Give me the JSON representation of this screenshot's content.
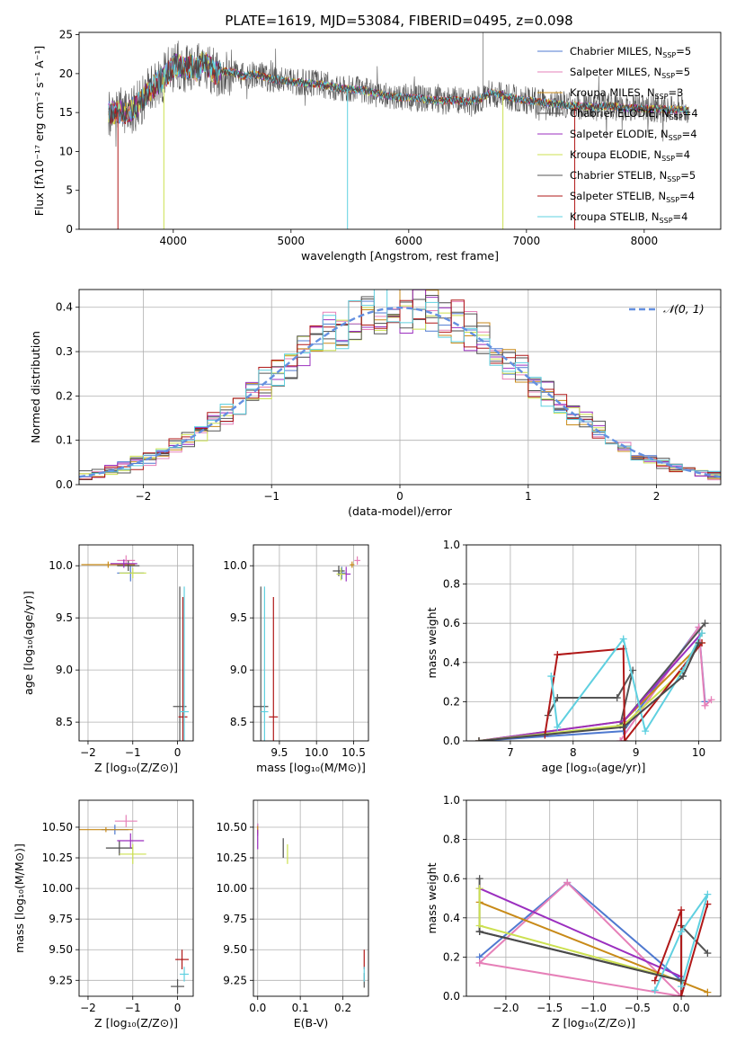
{
  "title": "PLATE=1619, MJD=53084, FIBERID=0495, z=0.098",
  "colors": [
    "#4f79d0",
    "#e680b8",
    "#c88a18",
    "#4a4a4a",
    "#9b2fbf",
    "#cce050",
    "#555555",
    "#b01818",
    "#5fd0e0"
  ],
  "chart_data": [
    {
      "id": "spectrum",
      "type": "line",
      "title": "PLATE=1619, MJD=53084, FIBERID=0495, z=0.098",
      "xlabel": "wavelength [Angstrom, rest frame]",
      "ylabel": "Flux [fλ10⁻¹⁷ erg cm⁻² s⁻¹ A⁻¹]",
      "xlim": [
        3200,
        8650
      ],
      "ylim": [
        0,
        25.3
      ],
      "xticks": [
        4000,
        5000,
        6000,
        7000,
        8000
      ],
      "yticks": [
        0,
        5,
        10,
        15,
        20,
        25
      ],
      "legend_position": "top-right",
      "data": {
        "x": [
          3450,
          3500,
          3550,
          3600,
          3650,
          3700,
          3750,
          3800,
          3850,
          3900,
          3950,
          4000,
          4050,
          4100,
          4150,
          4200,
          4250,
          4300,
          4350,
          4400,
          4500,
          4600,
          4700,
          4800,
          4900,
          5000,
          5100,
          5200,
          5300,
          5400,
          5500,
          5600,
          5700,
          5800,
          5900,
          6000,
          6100,
          6200,
          6300,
          6400,
          6500,
          6600,
          6700,
          6800,
          6900,
          7000,
          7100,
          7200,
          7300,
          7400,
          7500,
          7600,
          7700,
          7800,
          7900,
          8000,
          8100,
          8200,
          8300,
          8380
        ],
        "y": [
          15.1,
          14.7,
          15.2,
          15.0,
          15.4,
          16.0,
          17.0,
          17.8,
          18.6,
          19.2,
          20.0,
          20.8,
          21.2,
          20.6,
          21.0,
          20.5,
          21.4,
          21.0,
          20.0,
          20.3,
          20.2,
          19.6,
          20.0,
          19.4,
          19.2,
          18.9,
          18.8,
          18.7,
          18.5,
          18.2,
          18.0,
          17.9,
          17.5,
          17.2,
          17.0,
          16.9,
          16.8,
          16.6,
          16.5,
          16.6,
          16.4,
          16.7,
          17.6,
          17.2,
          16.8,
          16.6,
          16.4,
          16.2,
          16.0,
          15.9,
          15.8,
          15.7,
          15.9,
          15.6,
          15.6,
          15.5,
          15.5,
          15.4,
          15.4,
          15.3
        ]
      },
      "series": [
        {
          "name": "Chabrier MILES, N",
          "sub": "SSP",
          "suffix": "=5",
          "color": "#4f79d0"
        },
        {
          "name": "Salpeter MILES, N",
          "sub": "SSP",
          "suffix": "=5",
          "color": "#e680b8"
        },
        {
          "name": "Kroupa MILES, N",
          "sub": "SSP",
          "suffix": "=3",
          "color": "#c88a18"
        },
        {
          "name": "Chabrier ELODIE, N",
          "sub": "SSP",
          "suffix": "=4",
          "color": "#4a4a4a"
        },
        {
          "name": "Salpeter ELODIE, N",
          "sub": "SSP",
          "suffix": "=4",
          "color": "#9b2fbf"
        },
        {
          "name": "Kroupa ELODIE, N",
          "sub": "SSP",
          "suffix": "=4",
          "color": "#cce050"
        },
        {
          "name": "Chabrier STELIB, N",
          "sub": "SSP",
          "suffix": "=5",
          "color": "#555555"
        },
        {
          "name": "Salpeter STELIB, N",
          "sub": "SSP",
          "suffix": "=4",
          "color": "#b01818"
        },
        {
          "name": "Kroupa STELIB, N",
          "sub": "SSP",
          "suffix": "=4",
          "color": "#5fd0e0"
        }
      ]
    },
    {
      "id": "residuals",
      "type": "line",
      "xlabel": "(data-model)/error",
      "ylabel": "Normed distribution",
      "xlim": [
        -2.5,
        2.5
      ],
      "ylim": [
        0,
        0.44
      ],
      "xticks": [
        -2,
        -1,
        0,
        1,
        2
      ],
      "yticks": [
        0.0,
        0.1,
        0.2,
        0.3,
        0.4
      ],
      "grid": true,
      "legend_position": "top-right",
      "reference": {
        "name": "𝒩(0, 1)",
        "color": "#6490e0",
        "style": "dashed",
        "mu": 0,
        "sigma": 1
      },
      "bin_width": 0.1
    },
    {
      "id": "age-vs-Z",
      "type": "scatter",
      "xlabel": "Z [log₁₀(Z/Z⊙)]",
      "ylabel": "age  [log₁₀(age/yr)]",
      "xlim": [
        -2.2,
        0.35
      ],
      "ylim": [
        8.32,
        10.2
      ],
      "xticks": [
        -2,
        -1,
        0
      ],
      "yticks": [
        8.5,
        9.0,
        9.5,
        10.0
      ],
      "grid": true,
      "points": [
        {
          "x": -1.05,
          "y": 9.93,
          "xerr": 0.3,
          "yerr": 0.08,
          "c": 0
        },
        {
          "x": -1.15,
          "y": 10.05,
          "xerr": 0.2,
          "yerr": 0.05,
          "c": 1
        },
        {
          "x": -1.55,
          "y": 10.01,
          "xerr": 0.6,
          "yerr": 0.03,
          "c": 2
        },
        {
          "x": -1.1,
          "y": 10.0,
          "xerr": 0.25,
          "yerr": 0.05,
          "c": 3
        },
        {
          "x": -1.2,
          "y": 10.02,
          "xerr": 0.3,
          "yerr": 0.04,
          "c": 4
        },
        {
          "x": -1.0,
          "y": 9.93,
          "xerr": 0.3,
          "yerr": 0.05,
          "c": 5
        },
        {
          "x": 0.05,
          "y": 8.65,
          "xerr": 0.15,
          "yerr": 1.15,
          "c": 6
        },
        {
          "x": 0.12,
          "y": 8.55,
          "xerr": 0.1,
          "yerr": 1.15,
          "c": 7
        },
        {
          "x": 0.15,
          "y": 8.6,
          "xerr": 0.1,
          "yerr": 1.2,
          "c": 8
        }
      ]
    },
    {
      "id": "age-vs-mass",
      "type": "scatter",
      "xlabel": "mass [log₁₀(M/M⊙)]",
      "xlim": [
        9.15,
        10.7
      ],
      "ylim": [
        8.32,
        10.2
      ],
      "xticks": [
        9.5,
        10.0,
        10.5
      ],
      "yticks": [
        8.5,
        9.0,
        9.5,
        10.0
      ],
      "grid": true,
      "points": [
        {
          "x": 10.34,
          "y": 9.93,
          "xerr": 0.05,
          "yerr": 0.06,
          "c": 0
        },
        {
          "x": 10.55,
          "y": 10.05,
          "xerr": 0.04,
          "yerr": 0.04,
          "c": 1
        },
        {
          "x": 10.48,
          "y": 10.01,
          "xerr": 0.03,
          "yerr": 0.03,
          "c": 2
        },
        {
          "x": 10.3,
          "y": 9.95,
          "xerr": 0.08,
          "yerr": 0.05,
          "c": 3
        },
        {
          "x": 10.4,
          "y": 9.92,
          "xerr": 0.06,
          "yerr": 0.07,
          "c": 4
        },
        {
          "x": 10.33,
          "y": 9.92,
          "xerr": 0.06,
          "yerr": 0.06,
          "c": 5
        },
        {
          "x": 9.25,
          "y": 8.65,
          "xerr": 0.1,
          "yerr": 1.15,
          "c": 6
        },
        {
          "x": 9.42,
          "y": 8.55,
          "xerr": 0.06,
          "yerr": 1.15,
          "c": 7
        },
        {
          "x": 9.3,
          "y": 8.6,
          "xerr": 0.05,
          "yerr": 1.2,
          "c": 8
        }
      ]
    },
    {
      "id": "mass-weight-vs-age",
      "type": "line",
      "xlabel": "age  [log₁₀(age/yr)]",
      "ylabel": "mass weight",
      "xlim": [
        6.3,
        10.35
      ],
      "ylim": [
        0,
        1.0
      ],
      "xticks": [
        7,
        8,
        9,
        10
      ],
      "yticks": [
        0.0,
        0.2,
        0.4,
        0.6,
        0.8,
        1.0
      ],
      "grid": true,
      "series": [
        {
          "c": 0,
          "x": [
            6.5,
            8.8,
            10.0,
            10.1
          ],
          "y": [
            0.0,
            0.05,
            0.58,
            0.2
          ]
        },
        {
          "c": 1,
          "x": [
            8.75,
            10.0,
            10.1,
            10.2
          ],
          "y": [
            0.0,
            0.58,
            0.18,
            0.21
          ]
        },
        {
          "c": 2,
          "x": [
            6.5,
            8.8,
            10.05
          ],
          "y": [
            0.0,
            0.1,
            0.5
          ]
        },
        {
          "c": 6,
          "x": [
            7.6,
            7.75,
            8.7,
            8.95,
            8.75,
            10.1
          ],
          "y": [
            0.13,
            0.22,
            0.22,
            0.36,
            0.08,
            0.6
          ]
        },
        {
          "c": 4,
          "x": [
            6.5,
            8.8,
            10.05
          ],
          "y": [
            0.0,
            0.1,
            0.55
          ]
        },
        {
          "c": 5,
          "x": [
            6.5,
            8.8,
            9.75,
            10.05
          ],
          "y": [
            0.0,
            0.08,
            0.36,
            0.55
          ]
        },
        {
          "c": 7,
          "x": [
            7.55,
            7.75,
            8.8,
            8.82,
            10.05
          ],
          "y": [
            0.03,
            0.44,
            0.47,
            0.0,
            0.5
          ]
        },
        {
          "c": 8,
          "x": [
            7.65,
            7.75,
            8.8,
            9.15,
            9.75,
            10.05
          ],
          "y": [
            0.33,
            0.07,
            0.52,
            0.05,
            0.36,
            0.55
          ]
        },
        {
          "c": 3,
          "x": [
            6.5,
            8.8,
            9.75,
            10.0
          ],
          "y": [
            0.0,
            0.07,
            0.33,
            0.5
          ]
        }
      ]
    },
    {
      "id": "mass-vs-Z",
      "type": "scatter",
      "xlabel": "Z [log₁₀(Z/Z⊙)]",
      "ylabel": "mass [log₁₀(M/M⊙)]",
      "xlim": [
        -2.2,
        0.35
      ],
      "ylim": [
        9.12,
        10.72
      ],
      "xticks": [
        -2,
        -1,
        0
      ],
      "yticks": [
        9.25,
        9.5,
        9.75,
        10.0,
        10.25,
        10.5
      ],
      "grid": true,
      "points": [
        {
          "x": -1.4,
          "y": 10.48,
          "xerr": 0.3,
          "yerr": 0.04,
          "c": 0
        },
        {
          "x": -1.15,
          "y": 10.55,
          "xerr": 0.25,
          "yerr": 0.05,
          "c": 1
        },
        {
          "x": -1.6,
          "y": 10.48,
          "xerr": 0.6,
          "yerr": 0.02,
          "c": 2
        },
        {
          "x": -1.3,
          "y": 10.33,
          "xerr": 0.3,
          "yerr": 0.06,
          "c": 3
        },
        {
          "x": -1.05,
          "y": 10.39,
          "xerr": 0.3,
          "yerr": 0.06,
          "c": 4
        },
        {
          "x": -1.0,
          "y": 10.28,
          "xerr": 0.3,
          "yerr": 0.08,
          "c": 5
        },
        {
          "x": 0.0,
          "y": 9.2,
          "xerr": 0.15,
          "yerr": 0.06,
          "c": 6
        },
        {
          "x": 0.1,
          "y": 9.42,
          "xerr": 0.15,
          "yerr": 0.08,
          "c": 7
        },
        {
          "x": 0.15,
          "y": 9.3,
          "xerr": 0.1,
          "yerr": 0.06,
          "c": 8
        }
      ]
    },
    {
      "id": "mass-vs-EBV",
      "type": "scatter",
      "xlabel": "E(B-V)",
      "xlim": [
        -0.01,
        0.26
      ],
      "ylim": [
        9.12,
        10.72
      ],
      "xticks": [
        0.0,
        0.1,
        0.2
      ],
      "yticks": [
        9.25,
        9.5,
        9.75,
        10.0,
        10.25,
        10.5
      ],
      "grid": true,
      "points": [
        {
          "x": 0.0,
          "y": 10.48,
          "xerr": 0,
          "yerr": 0.05,
          "c": 0
        },
        {
          "x": 0.0,
          "y": 10.48,
          "xerr": 0,
          "yerr": 0.05,
          "c": 1
        },
        {
          "x": 0.0,
          "y": 10.48,
          "xerr": 0,
          "yerr": 0.03,
          "c": 2
        },
        {
          "x": 0.06,
          "y": 10.33,
          "xerr": 0,
          "yerr": 0.08,
          "c": 3
        },
        {
          "x": 0.0,
          "y": 10.4,
          "xerr": 0,
          "yerr": 0.08,
          "c": 4
        },
        {
          "x": 0.07,
          "y": 10.28,
          "xerr": 0,
          "yerr": 0.08,
          "c": 5
        },
        {
          "x": 0.25,
          "y": 9.25,
          "xerr": 0,
          "yerr": 0.06,
          "c": 6
        },
        {
          "x": 0.25,
          "y": 9.42,
          "xerr": 0,
          "yerr": 0.08,
          "c": 7
        },
        {
          "x": 0.25,
          "y": 9.3,
          "xerr": 0,
          "yerr": 0.06,
          "c": 8
        }
      ]
    },
    {
      "id": "mass-weight-vs-Z",
      "type": "line",
      "xlabel": "Z [log₁₀(Z/Z⊙)]",
      "ylabel": "mass weight",
      "xlim": [
        -2.45,
        0.45
      ],
      "ylim": [
        0,
        1.0
      ],
      "xticks": [
        -2.0,
        -1.5,
        -1.0,
        -0.5,
        0.0
      ],
      "yticks": [
        0.0,
        0.2,
        0.4,
        0.6,
        0.8,
        1.0
      ],
      "grid": true,
      "series": [
        {
          "c": 0,
          "x": [
            -2.3,
            -1.3,
            0.0,
            0.0
          ],
          "y": [
            0.2,
            0.58,
            0.08,
            0.0
          ]
        },
        {
          "c": 1,
          "x": [
            -2.3,
            -1.3,
            0.0,
            0.0,
            -2.3
          ],
          "y": [
            0.17,
            0.58,
            0.0,
            0.0,
            0.17
          ]
        },
        {
          "c": 2,
          "x": [
            -2.3,
            0.3
          ],
          "y": [
            0.48,
            0.02
          ]
        },
        {
          "c": 6,
          "x": [
            -2.3,
            -2.3,
            0.0,
            0.0,
            0.3
          ],
          "y": [
            0.6,
            0.33,
            0.08,
            0.36,
            0.22
          ]
        },
        {
          "c": 4,
          "x": [
            -2.3,
            0.0
          ],
          "y": [
            0.55,
            0.1
          ]
        },
        {
          "c": 5,
          "x": [
            -2.3,
            -2.3,
            0.0
          ],
          "y": [
            0.55,
            0.36,
            0.08
          ]
        },
        {
          "c": 7,
          "x": [
            -0.3,
            0.0,
            0.0,
            0.3,
            0.0
          ],
          "y": [
            0.08,
            0.44,
            0.0,
            0.47,
            0.0
          ]
        },
        {
          "c": 8,
          "x": [
            -0.3,
            0.0,
            0.3,
            0.0
          ],
          "y": [
            0.03,
            0.33,
            0.52,
            0.05
          ]
        },
        {
          "c": 3,
          "x": [
            -2.3,
            0.0
          ],
          "y": [
            0.33,
            0.08
          ]
        }
      ]
    }
  ]
}
